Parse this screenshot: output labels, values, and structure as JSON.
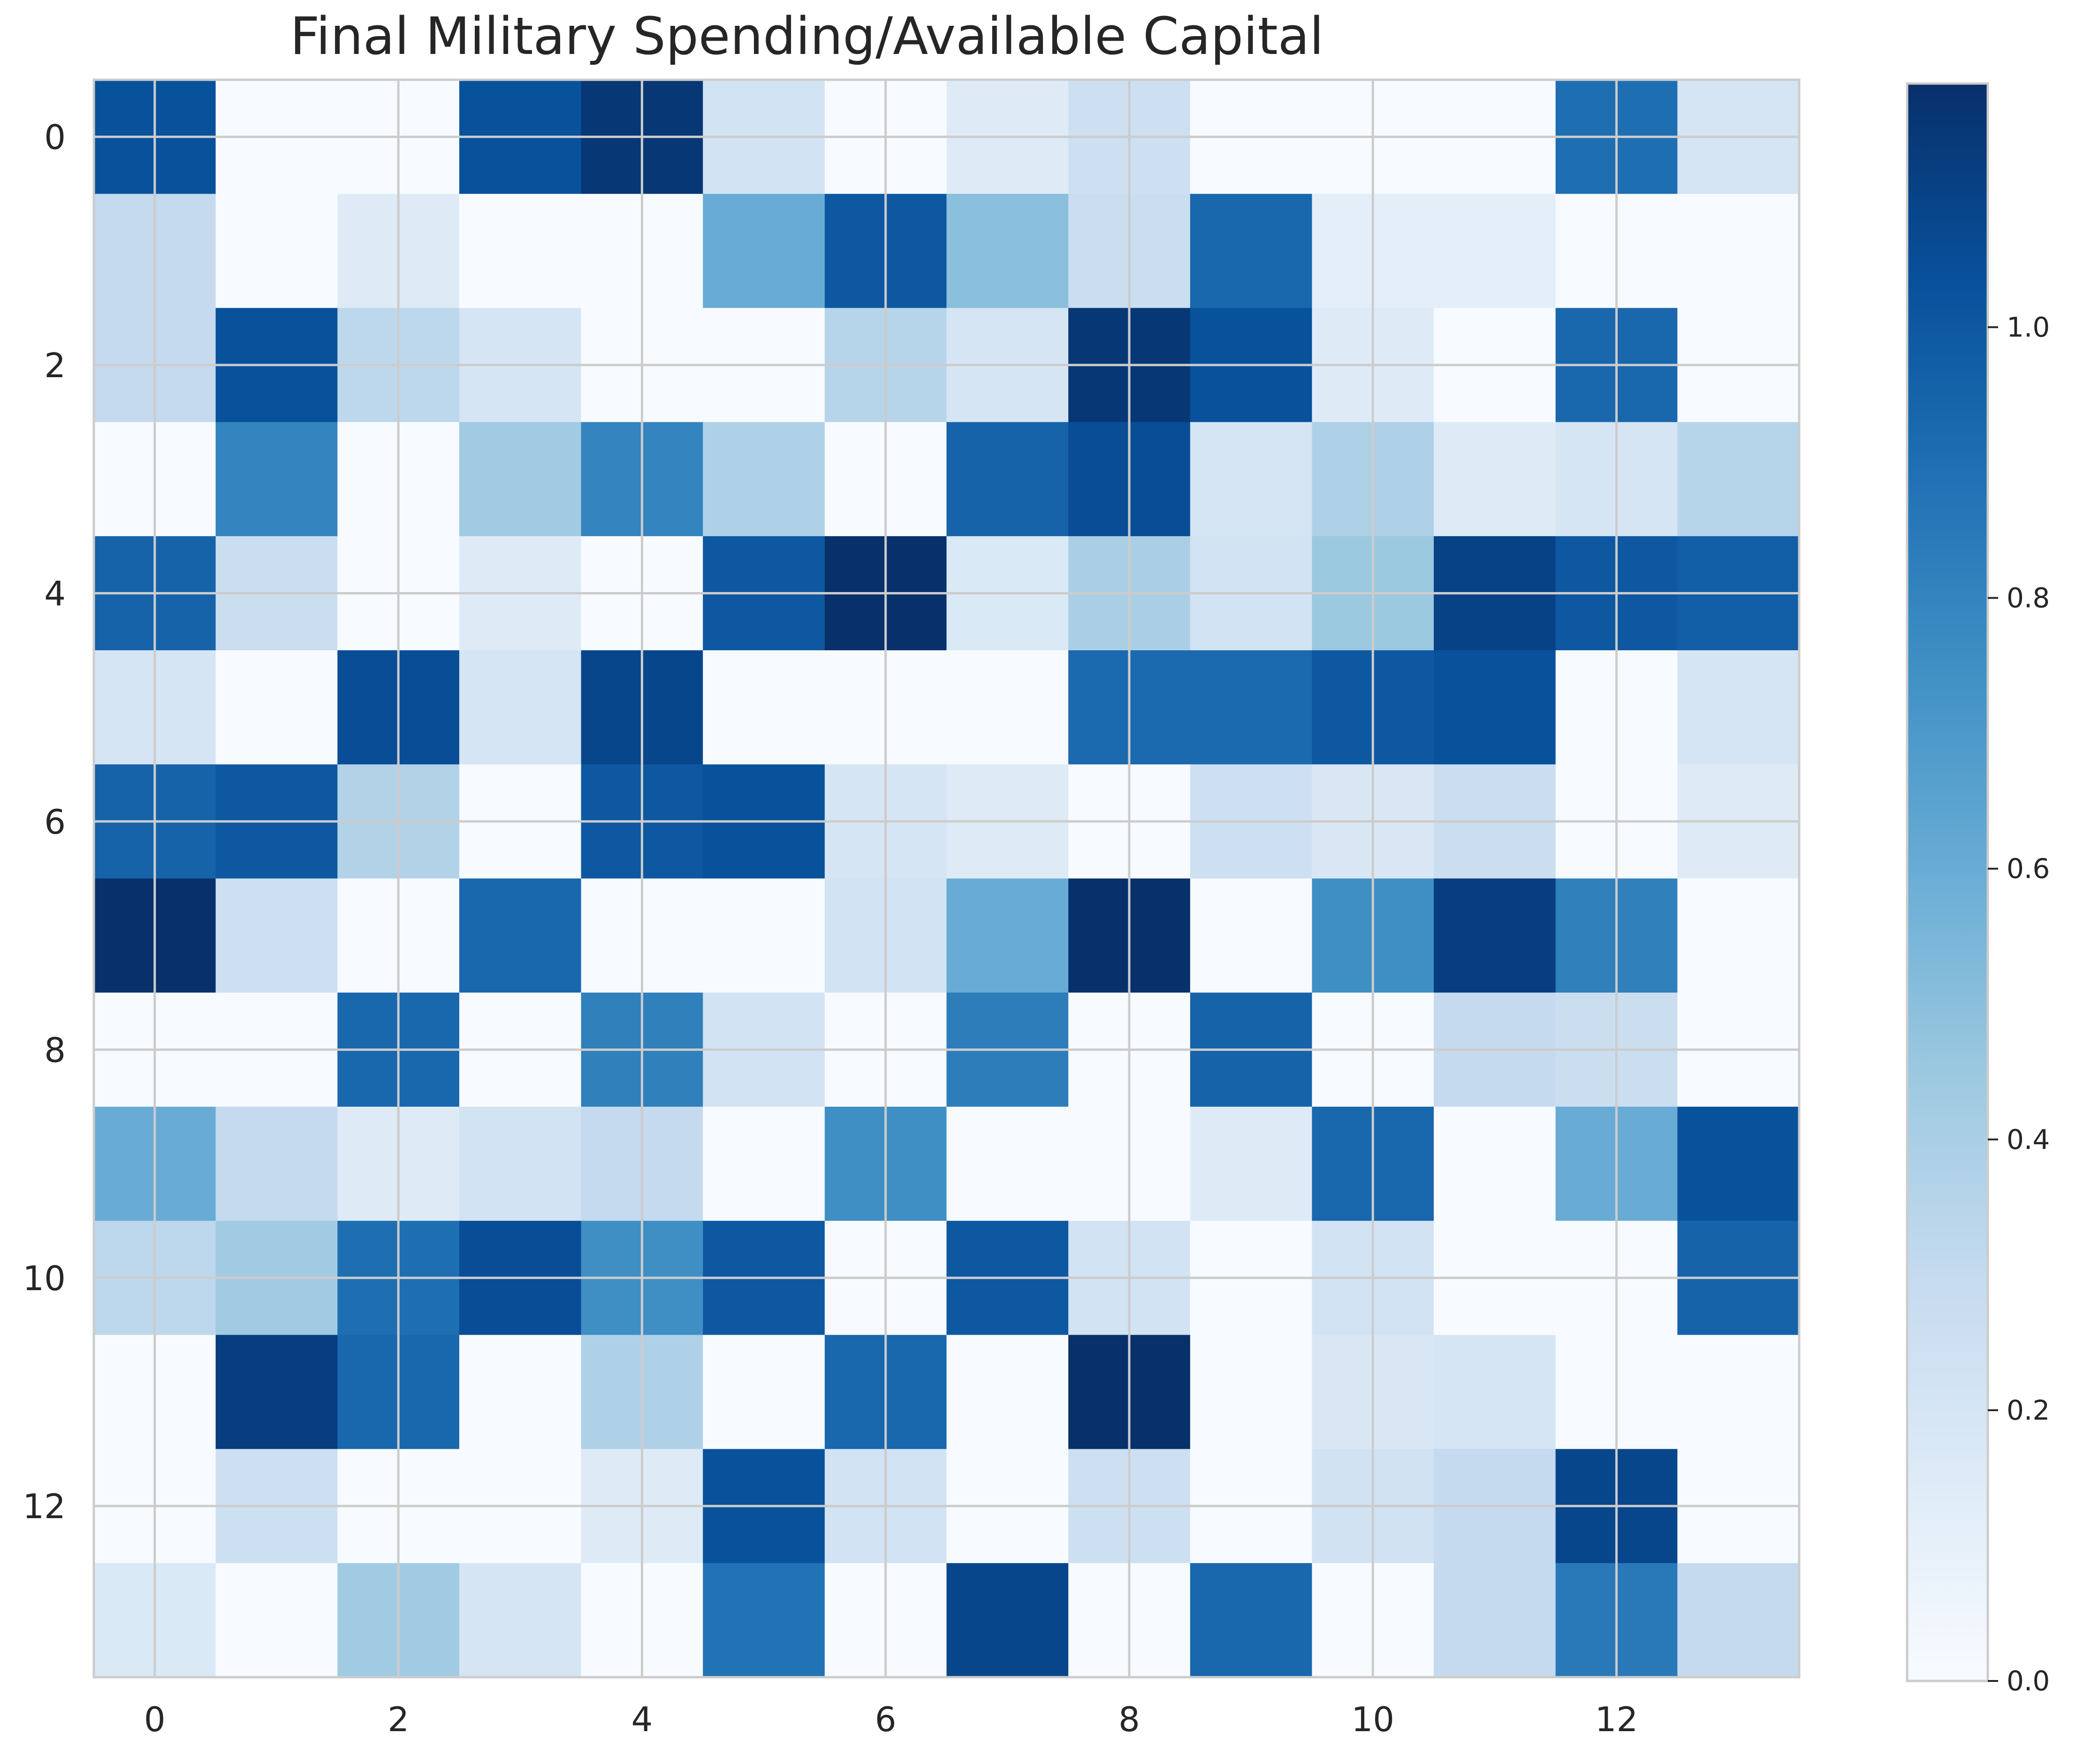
{
  "chart_data": {
    "type": "heatmap",
    "title": "Final Military Spending/Available Capital",
    "xlabel": "",
    "ylabel": "",
    "x_ticks": [
      0,
      2,
      4,
      6,
      8,
      10,
      12
    ],
    "y_ticks": [
      0,
      2,
      4,
      6,
      8,
      10,
      12
    ],
    "colorbar": {
      "ticks": [
        0.0,
        0.2,
        0.4,
        0.6,
        0.8,
        1.0
      ],
      "tick_labels": [
        "0.0",
        "0.2",
        "0.4",
        "0.6",
        "0.8",
        "1.0"
      ],
      "vmin": 0.0,
      "vmax": 1.18,
      "colormap": "Blues"
    },
    "grid": true,
    "values": [
      [
        1.03,
        0.0,
        0.0,
        1.03,
        1.15,
        0.22,
        0.0,
        0.15,
        0.25,
        0.0,
        0.0,
        0.0,
        0.9,
        0.2
      ],
      [
        0.3,
        0.0,
        0.15,
        0.0,
        0.0,
        0.6,
        1.0,
        0.5,
        0.27,
        0.93,
        0.12,
        0.12,
        0.0,
        0.0
      ],
      [
        0.3,
        1.03,
        0.33,
        0.2,
        0.0,
        0.0,
        0.35,
        0.2,
        1.15,
        1.03,
        0.15,
        0.0,
        0.93,
        0.0
      ],
      [
        0.0,
        0.8,
        0.0,
        0.43,
        0.8,
        0.38,
        0.0,
        0.95,
        1.05,
        0.2,
        0.38,
        0.15,
        0.2,
        0.35
      ],
      [
        0.95,
        0.27,
        0.0,
        0.15,
        0.0,
        1.0,
        1.18,
        0.17,
        0.4,
        0.22,
        0.45,
        1.1,
        1.0,
        0.97
      ],
      [
        0.2,
        0.0,
        1.05,
        0.2,
        1.08,
        0.0,
        0.0,
        0.0,
        0.92,
        0.92,
        1.0,
        1.03,
        0.0,
        0.2
      ],
      [
        0.95,
        1.0,
        0.37,
        0.0,
        1.0,
        1.03,
        0.2,
        0.15,
        0.0,
        0.25,
        0.18,
        0.27,
        0.0,
        0.15
      ],
      [
        1.18,
        0.25,
        0.0,
        0.93,
        0.0,
        0.0,
        0.22,
        0.6,
        1.18,
        0.0,
        0.75,
        1.12,
        0.82,
        0.0
      ],
      [
        0.0,
        0.0,
        0.93,
        0.0,
        0.82,
        0.22,
        0.0,
        0.83,
        0.0,
        0.95,
        0.0,
        0.3,
        0.27,
        0.0
      ],
      [
        0.6,
        0.3,
        0.15,
        0.22,
        0.3,
        0.0,
        0.75,
        0.0,
        0.0,
        0.15,
        0.93,
        0.0,
        0.6,
        1.03
      ],
      [
        0.33,
        0.43,
        0.9,
        1.05,
        0.75,
        1.0,
        0.0,
        1.0,
        0.22,
        0.0,
        0.22,
        0.0,
        0.0,
        0.95
      ],
      [
        0.0,
        1.12,
        0.93,
        0.0,
        0.38,
        0.0,
        0.93,
        0.0,
        1.18,
        0.0,
        0.18,
        0.2,
        0.0,
        0.0
      ],
      [
        0.0,
        0.25,
        0.0,
        0.0,
        0.15,
        1.03,
        0.22,
        0.0,
        0.25,
        0.0,
        0.23,
        0.3,
        1.08,
        0.0
      ],
      [
        0.17,
        0.0,
        0.43,
        0.2,
        0.0,
        0.88,
        0.0,
        1.08,
        0.0,
        0.93,
        0.0,
        0.3,
        0.85,
        0.3
      ]
    ]
  }
}
